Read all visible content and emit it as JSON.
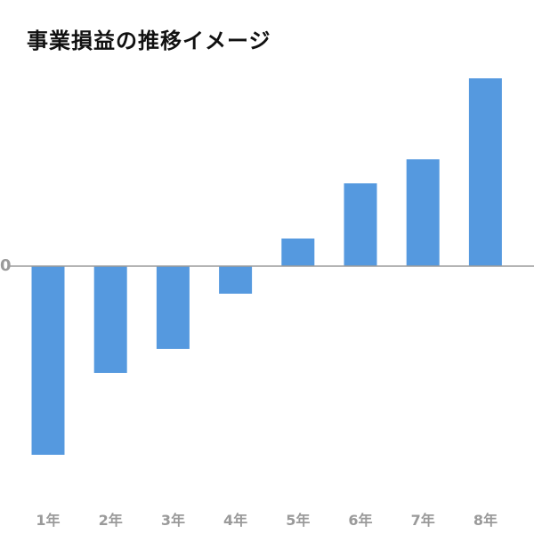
{
  "chart_data": {
    "type": "bar",
    "title": "事業損益の推移イメージ",
    "categories": [
      "1年",
      "2年",
      "3年",
      "4年",
      "5年",
      "6年",
      "7年",
      "8年"
    ],
    "values": [
      -212,
      -120,
      -93,
      -31,
      31,
      93,
      120,
      211
    ],
    "y_tick_labels": [
      "0"
    ],
    "ylim": [
      -270,
      270
    ],
    "xlabel": "",
    "ylabel": "",
    "grid": false,
    "legend": "none",
    "colors": {
      "bar": "#5599DF",
      "zero_line": "#9c9c9c",
      "tick_text": "#9a9a9a",
      "title": "#111111"
    }
  }
}
